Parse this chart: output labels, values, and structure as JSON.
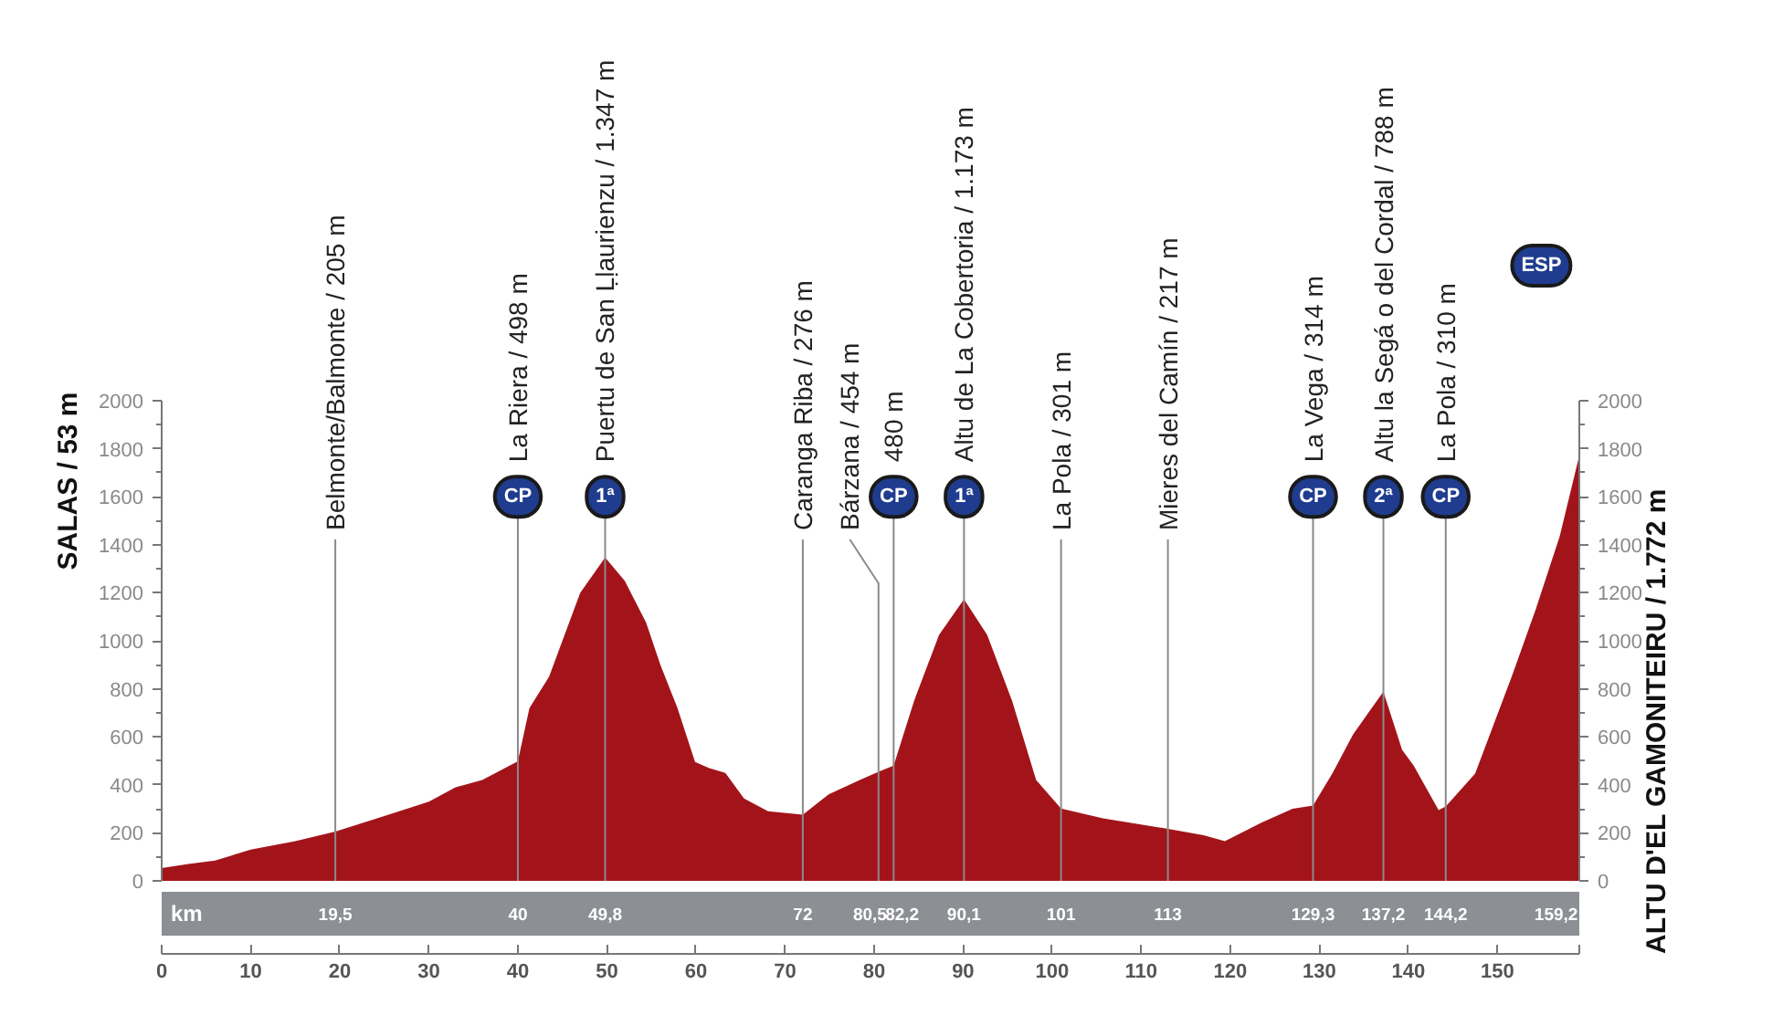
{
  "chart_data": {
    "type": "area",
    "x": [
      0,
      3,
      6,
      10,
      15,
      19.5,
      25,
      30,
      33,
      36,
      40,
      41.3,
      43.5,
      45,
      47,
      49.8,
      52,
      54.4,
      56,
      57.9,
      59.9,
      61.5,
      63.3,
      65.4,
      68.1,
      72,
      74.9,
      78.4,
      80.5,
      82.2,
      84.5,
      87.3,
      90.1,
      92.7,
      95.5,
      98.2,
      101,
      105.7,
      113,
      117,
      119.4,
      123.5,
      127,
      129.3,
      131.5,
      133.8,
      135.5,
      137.2,
      139.3,
      140.6,
      143.4,
      144.2,
      147.5,
      151.6,
      154.3,
      157,
      159.2
    ],
    "values": [
      53,
      70,
      85,
      130,
      165,
      205,
      270,
      330,
      390,
      420,
      498,
      720,
      850,
      1000,
      1200,
      1347,
      1250,
      1076,
      900,
      722,
      495,
      470,
      450,
      343,
      290,
      276,
      360,
      420,
      454,
      480,
      750,
      1025,
      1173,
      1025,
      750,
      420,
      301,
      260,
      217,
      190,
      165,
      242,
      300,
      314,
      450,
      610,
      700,
      788,
      546,
      480,
      295,
      310,
      447,
      850,
      1130,
      1435,
      1772
    ],
    "color": "#a3141a",
    "xlim": [
      0,
      159.2
    ],
    "xticks": [
      0,
      10,
      20,
      30,
      40,
      50,
      60,
      70,
      80,
      90,
      100,
      110,
      120,
      130,
      140,
      150,
      {
        "value": 159.2,
        "label": null
      }
    ],
    "ylim": [
      0,
      2000
    ],
    "yticks": [
      0,
      {
        "value": 100,
        "label": null
      },
      200,
      {
        "value": 300,
        "label": null
      },
      400,
      {
        "value": 500,
        "label": null
      },
      600,
      {
        "value": 700,
        "label": null
      },
      800,
      {
        "value": 900,
        "label": null
      },
      1000,
      {
        "value": 1100,
        "label": null
      },
      1200,
      {
        "value": 1300,
        "label": null
      },
      1400,
      {
        "value": 1500,
        "label": null
      },
      1600,
      {
        "value": 1700,
        "label": null
      },
      1800,
      {
        "value": 1900,
        "label": null
      },
      2000
    ],
    "y2lim": [
      0,
      2000
    ],
    "y2ticks": [
      0,
      {
        "value": 100,
        "label": null
      },
      200,
      {
        "value": 300,
        "label": null
      },
      400,
      {
        "value": 500,
        "label": null
      },
      600,
      {
        "value": 700,
        "label": null
      },
      800,
      {
        "value": 900,
        "label": null
      },
      1000,
      {
        "value": 1100,
        "label": null
      },
      1200,
      {
        "value": 1300,
        "label": null
      },
      1400,
      {
        "value": 1500,
        "label": null
      },
      1600,
      {
        "value": 1700,
        "label": null
      },
      1800,
      {
        "value": 1900,
        "label": null
      },
      2000
    ],
    "x2lim": [
      0,
      159.2
    ],
    "x2ticks": [
      {
        "value": 19.5,
        "label": "19,5"
      },
      40,
      {
        "value": 49.8,
        "label": "49,8"
      },
      72,
      {
        "value": 80.5,
        "label": "80,5"
      },
      {
        "value": 82.2,
        "label": "82,2"
      },
      {
        "value": 90.1,
        "label": "90,1"
      },
      101,
      113,
      {
        "value": 129.3,
        "label": "129,3"
      },
      {
        "value": 137.2,
        "label": "137,2"
      },
      {
        "value": 144.2,
        "label": "144,2"
      },
      {
        "value": 159.2,
        "label": "159,2"
      }
    ],
    "x2label": "km",
    "ylabel": "SALAS / 53 m",
    "y2label": "ALTU D'EL GAMONITEIRU / 1.772 m",
    "ref_lines": [
      {
        "axis": "x",
        "value": 19.5,
        "label": "Belmonte/Balmonte / 205 m"
      },
      {
        "axis": "x",
        "value": 40,
        "label": "La Riera / 498 m"
      },
      {
        "axis": "x",
        "value": 49.8,
        "label": "Puertu de San Ḷḷaurienzu / 1.347 m"
      },
      {
        "axis": "x",
        "value": 72,
        "label": "Caranga Riba / 276 m"
      },
      {
        "axis": "x",
        "value": 80.5,
        "label": "Bárzana / 454 m"
      },
      {
        "axis": "x",
        "value": 82.2,
        "label": "480 m"
      },
      {
        "axis": "x",
        "value": 90.1,
        "label": "Altu de La Cobertoria / 1.173 m"
      },
      {
        "axis": "x",
        "value": 101,
        "label": "La Pola / 301 m"
      },
      {
        "axis": "x",
        "value": 113,
        "label": "Mieres del Camín / 217 m"
      },
      {
        "axis": "x",
        "value": 129.3,
        "label": "La Vega / 314 m"
      },
      {
        "axis": "x",
        "value": 137.2,
        "label": "Altu la Segá o del Cordal / 788 m"
      },
      {
        "axis": "x",
        "value": 144.2,
        "label": "La Pola / 310 m"
      }
    ],
    "annotations": [
      {
        "text": "CP",
        "x": 40,
        "y": 1600
      },
      {
        "text": "1ª",
        "x": 49.8,
        "y": 1600
      },
      {
        "text": "CP",
        "x": 82.2,
        "y": 1600
      },
      {
        "text": "1ª",
        "x": 90.1,
        "y": 1600
      },
      {
        "text": "CP",
        "x": 129.3,
        "y": 1600
      },
      {
        "text": "2ª",
        "x": 137.2,
        "y": 1600
      },
      {
        "text": "CP",
        "x": 144.2,
        "y": 1600
      },
      "ESP"
    ]
  }
}
